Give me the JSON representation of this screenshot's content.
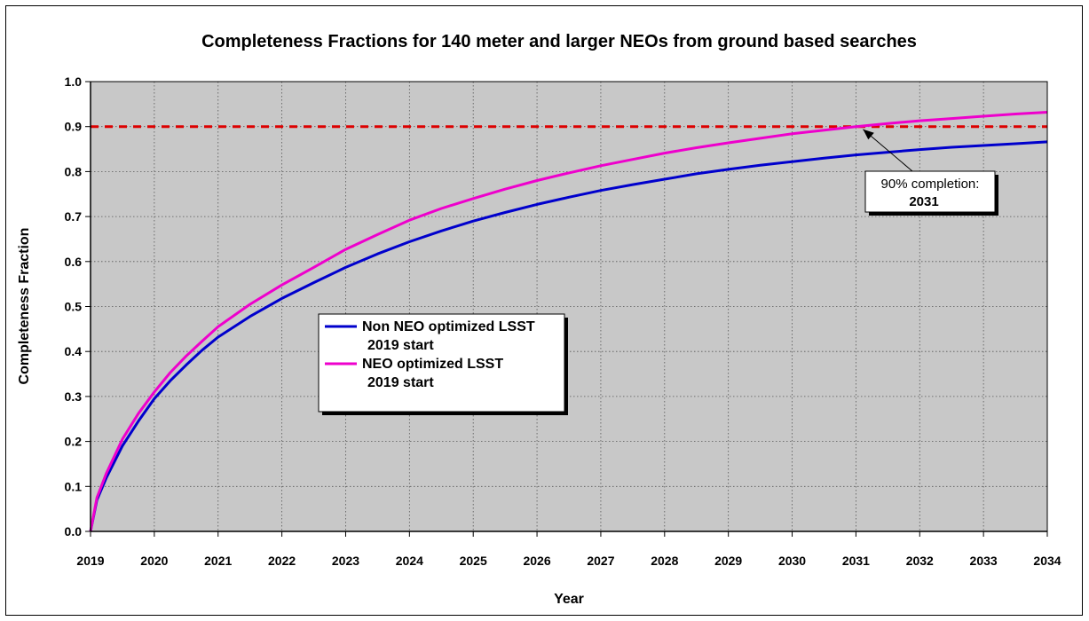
{
  "chart_data": {
    "type": "line",
    "title": "Completeness Fractions for 140 meter and larger NEOs from ground based searches",
    "xlabel": "Year",
    "ylabel": "Completeness Fraction",
    "xlim": [
      2019,
      2034
    ],
    "ylim": [
      0.0,
      1.0
    ],
    "x_ticks": [
      "2019",
      "2020",
      "2021",
      "2022",
      "2023",
      "2024",
      "2025",
      "2026",
      "2027",
      "2028",
      "2029",
      "2030",
      "2031",
      "2032",
      "2033",
      "2034"
    ],
    "y_ticks": [
      "0.0",
      "0.1",
      "0.2",
      "0.3",
      "0.4",
      "0.5",
      "0.6",
      "0.7",
      "0.8",
      "0.9",
      "1.0"
    ],
    "grid": true,
    "legend_position": "center-left",
    "series": [
      {
        "name_line1": "Non NEO optimized LSST",
        "name_line2": "2019 start",
        "color": "#0000cc",
        "x": [
          2019.0,
          2019.1,
          2019.25,
          2019.5,
          2019.75,
          2020.0,
          2020.25,
          2020.5,
          2020.75,
          2021.0,
          2021.5,
          2022.0,
          2022.5,
          2023.0,
          2023.5,
          2024.0,
          2024.5,
          2025.0,
          2025.5,
          2026.0,
          2026.5,
          2027.0,
          2027.5,
          2028.0,
          2028.5,
          2029.0,
          2029.5,
          2030.0,
          2030.5,
          2031.0,
          2031.5,
          2032.0,
          2032.5,
          2033.0,
          2033.5,
          2034.0
        ],
        "values": [
          0.0,
          0.07,
          0.12,
          0.19,
          0.245,
          0.295,
          0.335,
          0.37,
          0.403,
          0.432,
          0.478,
          0.518,
          0.553,
          0.587,
          0.617,
          0.644,
          0.668,
          0.69,
          0.709,
          0.727,
          0.743,
          0.758,
          0.771,
          0.783,
          0.795,
          0.805,
          0.814,
          0.822,
          0.83,
          0.837,
          0.843,
          0.849,
          0.854,
          0.858,
          0.862,
          0.866
        ]
      },
      {
        "name_line1": "NEO optimized LSST",
        "name_line2": "2019 start",
        "color": "#ee00cc",
        "x": [
          2019.0,
          2019.1,
          2019.25,
          2019.5,
          2019.75,
          2020.0,
          2020.25,
          2020.5,
          2020.75,
          2021.0,
          2021.5,
          2022.0,
          2022.5,
          2023.0,
          2023.5,
          2024.0,
          2024.5,
          2025.0,
          2025.5,
          2026.0,
          2026.5,
          2027.0,
          2027.5,
          2028.0,
          2028.5,
          2029.0,
          2029.5,
          2030.0,
          2030.5,
          2031.0,
          2031.5,
          2032.0,
          2032.5,
          2033.0,
          2033.5,
          2034.0
        ],
        "values": [
          0.0,
          0.075,
          0.13,
          0.205,
          0.262,
          0.31,
          0.353,
          0.39,
          0.423,
          0.455,
          0.505,
          0.548,
          0.587,
          0.627,
          0.66,
          0.692,
          0.718,
          0.74,
          0.761,
          0.78,
          0.797,
          0.813,
          0.827,
          0.841,
          0.853,
          0.864,
          0.874,
          0.884,
          0.892,
          0.9,
          0.907,
          0.913,
          0.918,
          0.923,
          0.928,
          0.932
        ]
      }
    ],
    "reference_line": {
      "y": 0.9,
      "color": "#dd0000",
      "style": "dashed"
    },
    "annotation": {
      "line1": "90% completion:",
      "line2": "2031",
      "arrow_target": {
        "x": 2031.0,
        "y": 0.9
      }
    }
  }
}
